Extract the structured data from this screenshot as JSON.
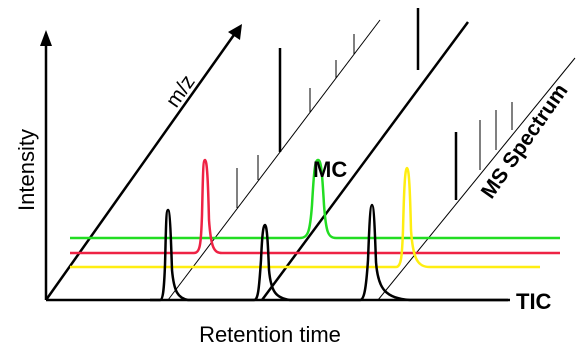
{
  "labels": {
    "x_axis": "Retention time",
    "y_axis": "Intensity",
    "mz": "m/z",
    "mc": "MC",
    "ms_spectrum": "MS Spectrum",
    "tic": "TIC"
  },
  "colors": {
    "axes": "#000000",
    "green": "#22dd22",
    "red": "#ee2244",
    "yellow": "#ffee11",
    "black": "#000000"
  },
  "traces": [
    {
      "name": "green",
      "peak_note": "single peak near middle"
    },
    {
      "name": "red",
      "peak_note": "single peak near left"
    },
    {
      "name": "yellow",
      "peak_note": "single peak near right"
    },
    {
      "name": "black",
      "peak_note": "three peaks (TIC)"
    }
  ]
}
